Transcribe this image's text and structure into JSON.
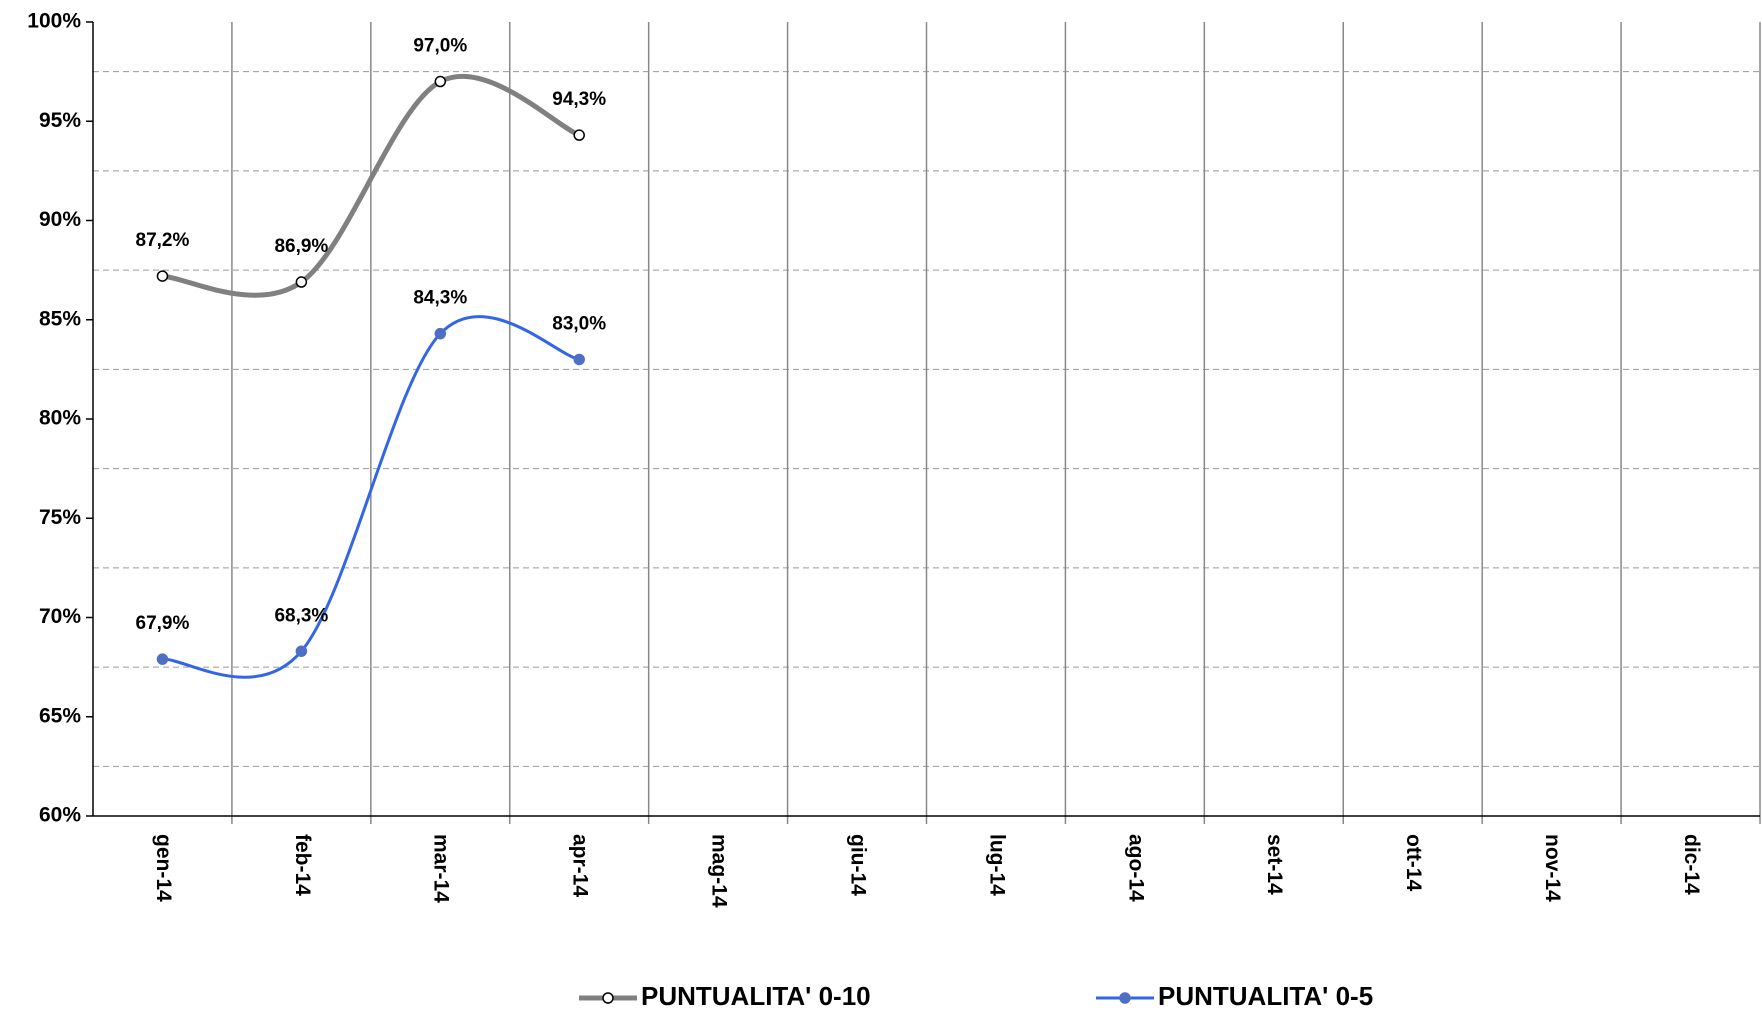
{
  "chart_data": {
    "type": "line",
    "categories": [
      "gen-14",
      "feb-14",
      "mar-14",
      "apr-14",
      "mag-14",
      "giu-14",
      "lug-14",
      "ago-14",
      "set-14",
      "ott-14",
      "nov-14",
      "dic-14"
    ],
    "series": [
      {
        "name": "PUNTUALITA' 0-10",
        "color": "#808080",
        "marker_fill": "#ffffff",
        "values": [
          87.2,
          86.9,
          97.0,
          94.3,
          null,
          null,
          null,
          null,
          null,
          null,
          null,
          null
        ],
        "value_labels": [
          "87,2%",
          "86,9%",
          "97,0%",
          "94,3%",
          null,
          null,
          null,
          null,
          null,
          null,
          null,
          null
        ]
      },
      {
        "name": "PUNTUALITA' 0-5",
        "color": "#3366e6",
        "marker_fill": "#4f6fc4",
        "values": [
          67.9,
          68.3,
          84.3,
          83.0,
          null,
          null,
          null,
          null,
          null,
          null,
          null,
          null
        ],
        "value_labels": [
          "67,9%",
          "68,3%",
          "84,3%",
          "83,0%",
          null,
          null,
          null,
          null,
          null,
          null,
          null,
          null
        ]
      }
    ],
    "ylim": [
      60,
      100
    ],
    "yticks": [
      {
        "value": 60,
        "label": "60%"
      },
      {
        "value": 65,
        "label": "65%"
      },
      {
        "value": 70,
        "label": "70%"
      },
      {
        "value": 75,
        "label": "75%"
      },
      {
        "value": 80,
        "label": "80%"
      },
      {
        "value": 85,
        "label": "85%"
      },
      {
        "value": 90,
        "label": "90%"
      },
      {
        "value": 95,
        "label": "95%"
      },
      {
        "value": 100,
        "label": "100%"
      }
    ],
    "minor_grid": [
      62.5,
      67.5,
      72.5,
      77.5,
      82.5,
      87.5,
      92.5,
      97.5
    ],
    "smooth": true,
    "legend": "bottom"
  }
}
